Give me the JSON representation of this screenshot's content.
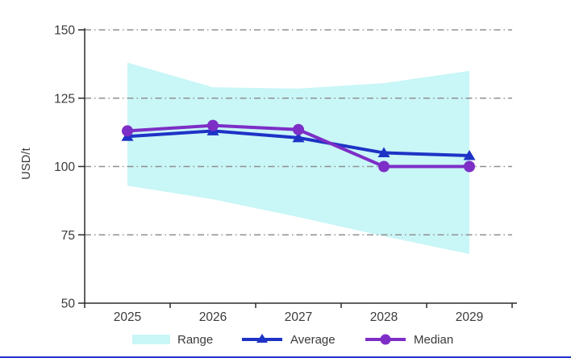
{
  "chart_data": {
    "type": "line",
    "title": "",
    "xlabel": "",
    "ylabel": "USD/t",
    "categories": [
      "2025",
      "2026",
      "2027",
      "2028",
      "2029"
    ],
    "ylim": [
      50,
      150
    ],
    "yticks": [
      50,
      75,
      100,
      125,
      150
    ],
    "grid": "horizontal dash-dot gridlines at 75, 100, 125, 150",
    "legend_position": "bottom",
    "range_series": {
      "name": "Range",
      "upper": [
        138,
        129,
        128.5,
        130.5,
        135
      ],
      "lower": [
        93,
        88,
        81.5,
        74.5,
        68
      ],
      "color": "#c9f6f7"
    },
    "series": [
      {
        "name": "Average",
        "marker": "triangle",
        "values": [
          111,
          113,
          110.5,
          105,
          104
        ],
        "color": "#1e33c6"
      },
      {
        "name": "Median",
        "marker": "circle",
        "values": [
          113,
          115,
          113.5,
          100,
          100
        ],
        "color": "#7d2ec6"
      }
    ]
  },
  "colors": {
    "grid": "#909090",
    "axis": "#2b2b2b",
    "text": "#3a3a3a",
    "bottom_rule": "#2433cb"
  }
}
